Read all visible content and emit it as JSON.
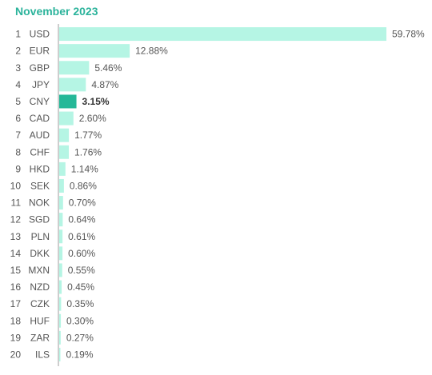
{
  "header": {
    "title": "November 2023"
  },
  "colors": {
    "title": "#2bb39b",
    "bar": "#b5f5e4",
    "bar_highlight": "#25b898",
    "axis": "#9e9e9e"
  },
  "chart_data": {
    "type": "bar",
    "orientation": "horizontal",
    "title": "November 2023",
    "highlight": "CNY",
    "ranks": [
      "1",
      "2",
      "3",
      "4",
      "5",
      "6",
      "7",
      "8",
      "9",
      "10",
      "11",
      "12",
      "13",
      "14",
      "15",
      "16",
      "17",
      "18",
      "19",
      "20"
    ],
    "categories": [
      "USD",
      "EUR",
      "GBP",
      "JPY",
      "CNY",
      "CAD",
      "AUD",
      "CHF",
      "HKD",
      "SEK",
      "NOK",
      "SGD",
      "PLN",
      "DKK",
      "MXN",
      "NZD",
      "CZK",
      "HUF",
      "ZAR",
      "ILS"
    ],
    "values": [
      59.78,
      12.88,
      5.46,
      4.87,
      3.15,
      2.6,
      1.77,
      1.76,
      1.14,
      0.86,
      0.7,
      0.64,
      0.61,
      0.6,
      0.55,
      0.45,
      0.35,
      0.3,
      0.27,
      0.19
    ],
    "labels": [
      "59.78%",
      "12.88%",
      "5.46%",
      "4.87%",
      "3.15%",
      "2.60%",
      "1.77%",
      "1.76%",
      "1.14%",
      "0.86%",
      "0.70%",
      "0.64%",
      "0.61%",
      "0.60%",
      "0.55%",
      "0.45%",
      "0.35%",
      "0.30%",
      "0.27%",
      "0.19%"
    ],
    "unit": "%",
    "xlim": [
      0,
      59.78
    ]
  }
}
